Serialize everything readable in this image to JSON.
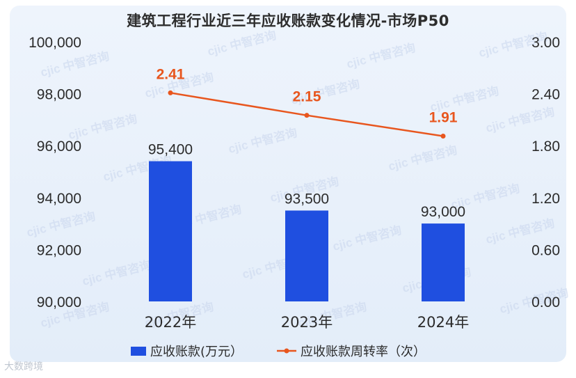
{
  "footer_text": "大数跨境",
  "chart_data": {
    "type": "bar",
    "title": "建筑工程行业近三年应收账款变化情况-市场P50",
    "categories": [
      "2022年",
      "2023年",
      "2024年"
    ],
    "series": [
      {
        "name": "应收账款(万元）",
        "type": "bar",
        "axis": "left",
        "color": "#1f4fe0",
        "values": [
          95400,
          93500,
          93000
        ],
        "labels": [
          "95,400",
          "93,500",
          "93,000"
        ]
      },
      {
        "name": "应收账款周转率（次）",
        "type": "line",
        "axis": "right",
        "color": "#e8561e",
        "values": [
          2.41,
          2.15,
          1.91
        ],
        "labels": [
          "2.41",
          "2.15",
          "1.91"
        ]
      }
    ],
    "y_left": {
      "ylim": [
        90000,
        100000
      ],
      "ticks": [
        "90,000",
        "92,000",
        "94,000",
        "96,000",
        "98,000",
        "100,000"
      ]
    },
    "y_right": {
      "ylim": [
        0,
        3
      ],
      "ticks": [
        "0.00",
        "0.60",
        "1.20",
        "1.80",
        "2.40",
        "3.00"
      ]
    },
    "grid": false,
    "legend": "bottom",
    "watermark": "cjic 中智咨询"
  }
}
